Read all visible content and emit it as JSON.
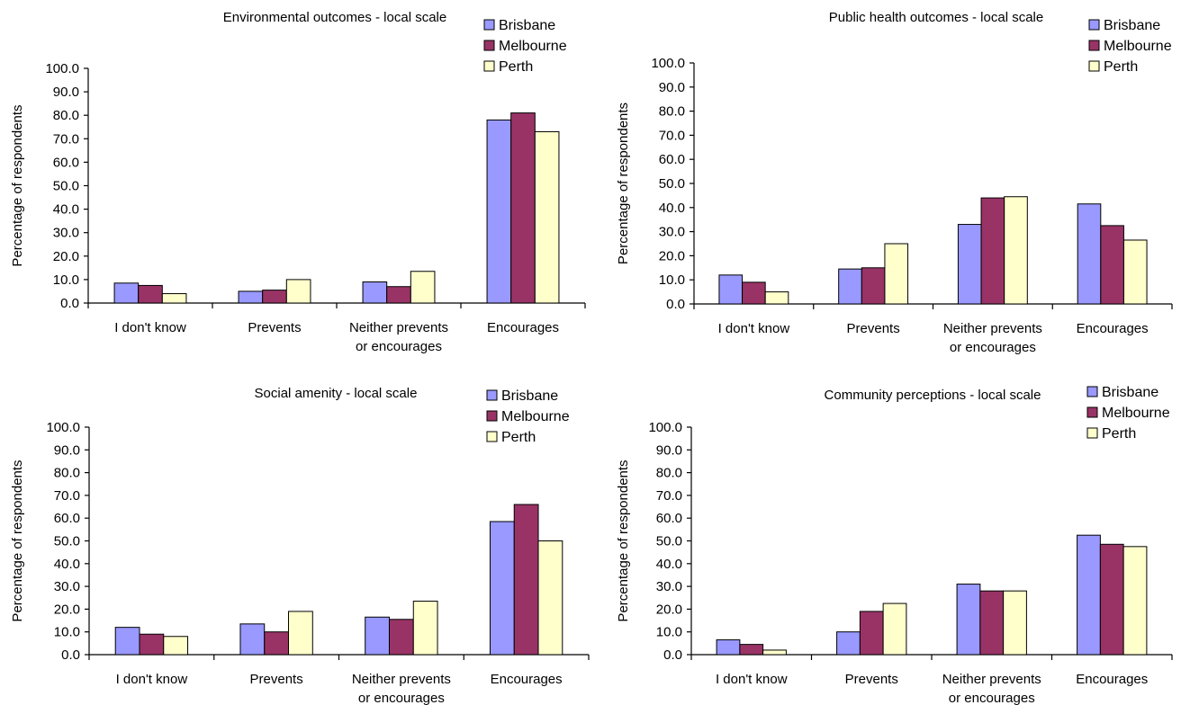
{
  "colors": {
    "Brisbane": "#9999ff",
    "Melbourne": "#993366",
    "Perth": "#ffffcc",
    "stroke": "#000000"
  },
  "chart_data": [
    {
      "type": "bar",
      "title": "Environmental outcomes - local scale",
      "ylabel": "Percentage of respondents",
      "xlabel": "",
      "ylim": [
        0,
        100
      ],
      "yticks": [
        "0.0",
        "10.0",
        "20.0",
        "30.0",
        "40.0",
        "50.0",
        "60.0",
        "70.0",
        "80.0",
        "90.0",
        "100.0"
      ],
      "categories": [
        [
          "I don't know"
        ],
        [
          "Prevents"
        ],
        [
          "Neither prevents",
          "or encourages"
        ],
        [
          "Encourages"
        ]
      ],
      "series": [
        {
          "name": "Brisbane",
          "values": [
            8.5,
            5.0,
            9.0,
            78.0
          ]
        },
        {
          "name": "Melbourne",
          "values": [
            7.5,
            5.5,
            7.0,
            81.0
          ]
        },
        {
          "name": "Perth",
          "values": [
            4.0,
            10.0,
            13.5,
            73.0
          ]
        }
      ],
      "legend": "top-right",
      "grid": false
    },
    {
      "type": "bar",
      "title": "Public health outcomes - local scale",
      "ylabel": "Percentage of respondents",
      "xlabel": "",
      "ylim": [
        0,
        100
      ],
      "yticks": [
        "0.0",
        "10.0",
        "20.0",
        "30.0",
        "40.0",
        "50.0",
        "60.0",
        "70.0",
        "80.0",
        "90.0",
        "100.0"
      ],
      "categories": [
        [
          "I don't know"
        ],
        [
          "Prevents"
        ],
        [
          "Neither prevents",
          "or encourages"
        ],
        [
          "Encourages"
        ]
      ],
      "series": [
        {
          "name": "Brisbane",
          "values": [
            12.0,
            14.5,
            33.0,
            41.5
          ]
        },
        {
          "name": "Melbourne",
          "values": [
            9.0,
            15.0,
            44.0,
            32.5
          ]
        },
        {
          "name": "Perth",
          "values": [
            5.0,
            25.0,
            44.5,
            26.5
          ]
        }
      ],
      "legend": "top-right",
      "grid": false
    },
    {
      "type": "bar",
      "title": "Social amenity - local scale",
      "ylabel": "Percentage of respondents",
      "xlabel": "",
      "ylim": [
        0,
        100
      ],
      "yticks": [
        "0.0",
        "10.0",
        "20.0",
        "30.0",
        "40.0",
        "50.0",
        "60.0",
        "70.0",
        "80.0",
        "90.0",
        "100.0"
      ],
      "categories": [
        [
          "I don't know"
        ],
        [
          "Prevents"
        ],
        [
          "Neither prevents",
          "or encourages"
        ],
        [
          "Encourages"
        ]
      ],
      "series": [
        {
          "name": "Brisbane",
          "values": [
            12.0,
            13.5,
            16.5,
            58.5
          ]
        },
        {
          "name": "Melbourne",
          "values": [
            9.0,
            10.0,
            15.5,
            66.0
          ]
        },
        {
          "name": "Perth",
          "values": [
            8.0,
            19.0,
            23.5,
            50.0
          ]
        }
      ],
      "legend": "top-right",
      "grid": false
    },
    {
      "type": "bar",
      "title": "Community perceptions - local scale",
      "ylabel": "Percentage of respondents",
      "xlabel": "",
      "ylim": [
        0,
        100
      ],
      "yticks": [
        "0.0",
        "10.0",
        "20.0",
        "30.0",
        "40.0",
        "50.0",
        "60.0",
        "70.0",
        "80.0",
        "90.0",
        "100.0"
      ],
      "categories": [
        [
          "I don't know"
        ],
        [
          "Prevents"
        ],
        [
          "Neither prevents",
          "or encourages"
        ],
        [
          "Encourages"
        ]
      ],
      "series": [
        {
          "name": "Brisbane",
          "values": [
            6.5,
            10.0,
            31.0,
            52.5
          ]
        },
        {
          "name": "Melbourne",
          "values": [
            4.5,
            19.0,
            28.0,
            48.5
          ]
        },
        {
          "name": "Perth",
          "values": [
            2.0,
            22.5,
            28.0,
            47.5
          ]
        }
      ],
      "legend": "top-right",
      "grid": false
    }
  ]
}
